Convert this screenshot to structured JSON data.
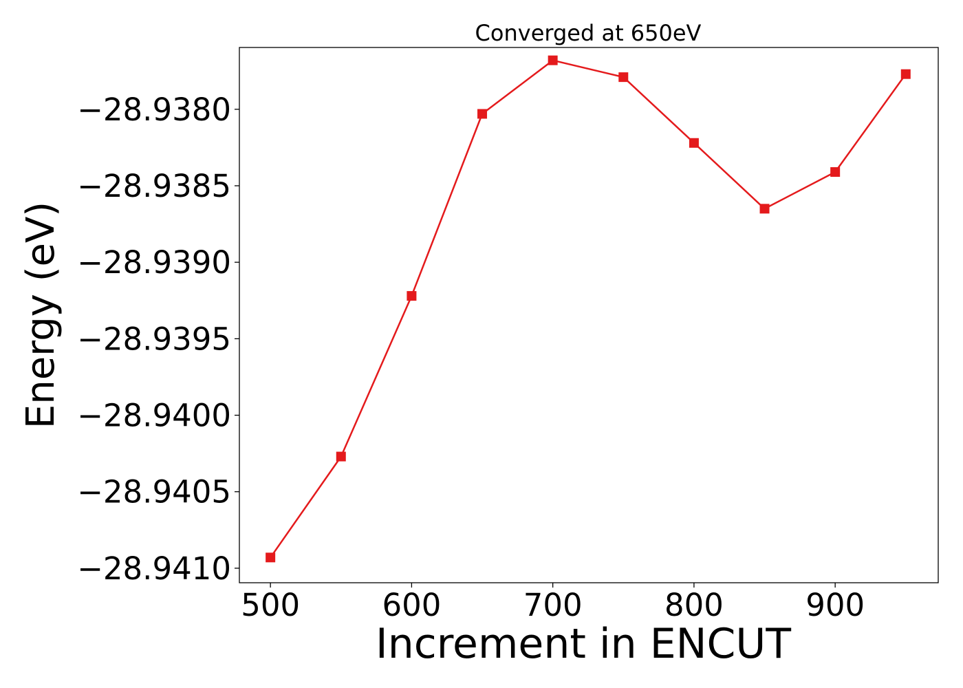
{
  "chart_data": {
    "type": "line",
    "title": "Converged at 650eV",
    "xlabel": "Increment in ENCUT",
    "ylabel": "Energy (eV)",
    "x": [
      500,
      550,
      600,
      650,
      700,
      750,
      800,
      850,
      900,
      950
    ],
    "series": [
      {
        "values": [
          -28.94093,
          -28.94027,
          -28.93922,
          -28.93803,
          -28.93768,
          -28.93779,
          -28.93822,
          -28.93865,
          -28.93841,
          -28.93777
        ],
        "color": "#e41a1c",
        "marker": "square"
      }
    ],
    "xticks": [
      500,
      600,
      700,
      800,
      900
    ],
    "xtick_labels": [
      "500",
      "600",
      "700",
      "800",
      "900"
    ],
    "yticks": [
      -28.941,
      -28.9405,
      -28.94,
      -28.9395,
      -28.939,
      -28.9385,
      -28.938
    ],
    "ytick_labels": [
      "−28.9410",
      "−28.9405",
      "−28.9400",
      "−28.9395",
      "−28.9390",
      "−28.9385",
      "−28.9380"
    ],
    "xlim": [
      478,
      973
    ],
    "ylim": [
      -28.941095,
      -28.937596
    ],
    "grid": false,
    "legend": false
  }
}
